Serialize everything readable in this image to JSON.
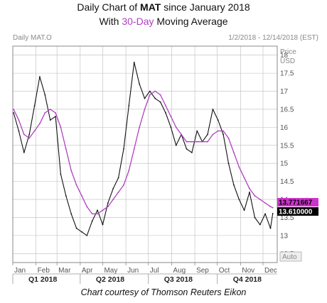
{
  "header": {
    "title_prefix": "Daily Chart of ",
    "title_ticker": "MAT",
    "title_suffix": " since January 2018",
    "subtitle_prefix": "With ",
    "subtitle_ma": "30-Day",
    "subtitle_suffix": " Moving Average"
  },
  "chart_header": {
    "left": "Daily MAT.O",
    "right": "1/2/2018 - 12/14/2018 (EST)",
    "price_label": "Price",
    "currency_label": "USD",
    "auto_label": "Auto"
  },
  "caption": "Chart courtesy of Thomson Reuters Eikon",
  "colors": {
    "price": "#111111",
    "ma": "#b040c0",
    "grid": "#bbbbbb",
    "tag_ma_bg": "#cc33cc",
    "tag_price_bg": "#000000"
  },
  "chart_data": {
    "type": "line",
    "title": "Daily Chart of MAT since January 2018",
    "subtitle": "With 30-Day Moving Average",
    "xlabel": "",
    "ylabel": "Price USD",
    "ylim": [
      12.25,
      18.25
    ],
    "y_ticks": [
      "12.5",
      "13",
      "13.5",
      "14",
      "14.5",
      "15",
      "15.5",
      "16",
      "16.5",
      "17",
      "17.5",
      "18"
    ],
    "x_ticks": [
      "Jan",
      "Feb",
      "Mar",
      "Apr",
      "May",
      "Jun",
      "Jul",
      "Aug",
      "Sep",
      "Oct",
      "Nov",
      "Dec"
    ],
    "quarters": [
      "Q1 2018",
      "Q2 2018",
      "Q3 2018",
      "Q4 2018"
    ],
    "grid": true,
    "last_values": {
      "ma": "13.771667",
      "price": "13.610000"
    },
    "x": [
      "2018-01-02",
      "2018-01-09",
      "2018-01-16",
      "2018-01-23",
      "2018-01-30",
      "2018-02-06",
      "2018-02-13",
      "2018-02-20",
      "2018-02-27",
      "2018-03-06",
      "2018-03-13",
      "2018-03-20",
      "2018-03-27",
      "2018-04-03",
      "2018-04-10",
      "2018-04-17",
      "2018-04-24",
      "2018-05-01",
      "2018-05-08",
      "2018-05-15",
      "2018-05-22",
      "2018-05-29",
      "2018-06-05",
      "2018-06-12",
      "2018-06-19",
      "2018-06-26",
      "2018-07-03",
      "2018-07-10",
      "2018-07-17",
      "2018-07-24",
      "2018-07-31",
      "2018-08-07",
      "2018-08-14",
      "2018-08-21",
      "2018-08-28",
      "2018-09-04",
      "2018-09-11",
      "2018-09-18",
      "2018-09-25",
      "2018-10-02",
      "2018-10-09",
      "2018-10-16",
      "2018-10-23",
      "2018-10-30",
      "2018-11-06",
      "2018-11-13",
      "2018-11-20",
      "2018-11-27",
      "2018-12-04",
      "2018-12-11",
      "2018-12-14"
    ],
    "series": [
      {
        "name": "MAT.O",
        "values": [
          16.4,
          15.9,
          15.3,
          15.8,
          16.6,
          17.4,
          16.9,
          16.2,
          16.3,
          14.7,
          14.1,
          13.6,
          13.2,
          13.1,
          13.0,
          13.4,
          13.7,
          13.3,
          13.9,
          14.3,
          14.6,
          15.4,
          16.6,
          17.8,
          17.2,
          16.8,
          17.0,
          16.8,
          16.7,
          16.4,
          16.0,
          15.5,
          15.8,
          15.4,
          15.3,
          15.9,
          15.6,
          15.8,
          16.5,
          16.2,
          15.8,
          15.0,
          14.4,
          14.0,
          13.7,
          14.2,
          13.5,
          13.3,
          13.6,
          13.2,
          13.61
        ]
      },
      {
        "name": "30-Day",
        "values": [
          16.5,
          16.2,
          15.8,
          15.7,
          15.9,
          16.1,
          16.4,
          16.5,
          16.4,
          16.0,
          15.4,
          14.8,
          14.4,
          14.1,
          13.8,
          13.6,
          13.6,
          13.7,
          13.8,
          14.0,
          14.2,
          14.4,
          14.8,
          15.4,
          16.0,
          16.5,
          16.9,
          17.0,
          16.9,
          16.6,
          16.3,
          16.0,
          15.8,
          15.6,
          15.6,
          15.6,
          15.6,
          15.6,
          15.8,
          15.9,
          15.9,
          15.7,
          15.3,
          14.9,
          14.6,
          14.3,
          14.1,
          14.0,
          13.9,
          13.8,
          13.7716
        ]
      }
    ]
  }
}
